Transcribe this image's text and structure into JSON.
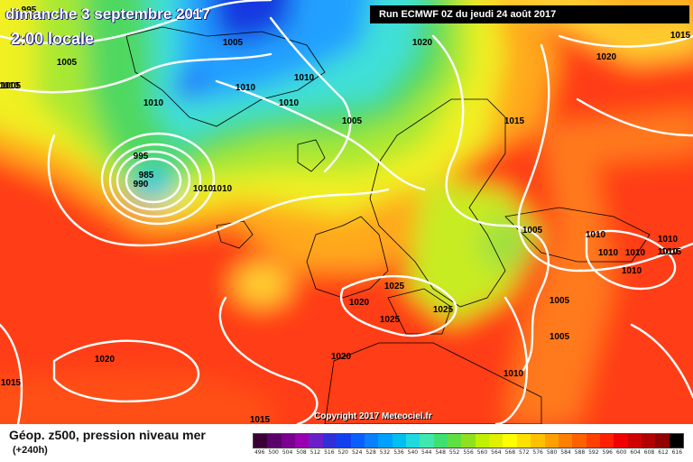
{
  "header": {
    "date": "dimanche 3 septembre 2017",
    "time": "2:00 locale",
    "run": "Run ECMWF 0Z du jeudi 24 août 2017"
  },
  "footer": {
    "copyright": "Copyright 2017 Meteociel.fr",
    "title": "Géop. z500, pression niveau mer",
    "lead": "(+240h)"
  },
  "scale": {
    "ticks": [
      "496",
      "500",
      "504",
      "508",
      "512",
      "516",
      "520",
      "524",
      "528",
      "532",
      "536",
      "540",
      "544",
      "548",
      "552",
      "556",
      "560",
      "564",
      "568",
      "572",
      "576",
      "580",
      "584",
      "588",
      "592",
      "596",
      "600",
      "604",
      "608",
      "612",
      "616"
    ],
    "colors": [
      "#3a0036",
      "#5a006a",
      "#7a0090",
      "#9a00b0",
      "#6a20c8",
      "#3030d8",
      "#1040f0",
      "#0a60ff",
      "#0a80ff",
      "#00a0ff",
      "#00c0f0",
      "#20d8e0",
      "#40e8b0",
      "#40e070",
      "#60e040",
      "#90e020",
      "#c0f000",
      "#e0f000",
      "#ffff00",
      "#ffe000",
      "#ffc000",
      "#ffa000",
      "#ff8000",
      "#ff6000",
      "#ff4000",
      "#ff2000",
      "#f00000",
      "#d00000",
      "#b00000",
      "#900000",
      "#000000"
    ]
  },
  "isobar_labels": [
    "995",
    "1005",
    "1005",
    "1005",
    "1010",
    "1010",
    "1010",
    "1010",
    "1020",
    "1015",
    "1015",
    "1020",
    "995",
    "985",
    "990",
    "1010",
    "1010",
    "1010",
    "1005",
    "1010",
    "1010",
    "1010",
    "1015",
    "1005",
    "1010",
    "1010",
    "1010",
    "1020",
    "1025",
    "1025",
    "1025",
    "1020",
    "1020",
    "1005",
    "1005",
    "1015",
    "1010",
    "1015"
  ],
  "colors": {
    "land_line": "#000000",
    "isobar": "#ffffff"
  }
}
